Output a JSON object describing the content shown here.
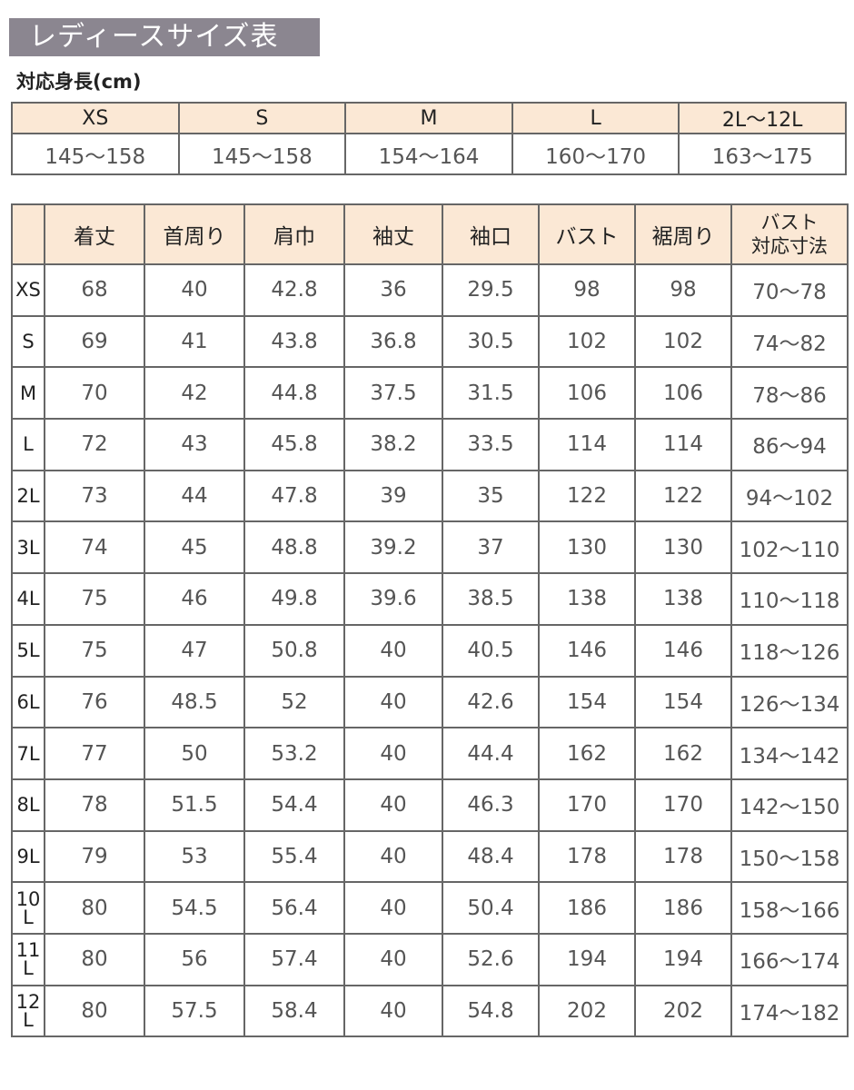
{
  "title": "レディースサイズ表",
  "height_table": {
    "label": "対応身長(cm)",
    "sizes": [
      "XS",
      "S",
      "M",
      "L",
      "2L〜12L"
    ],
    "heights": [
      "145〜158",
      "145〜158",
      "154〜164",
      "160〜170",
      "163〜175"
    ]
  },
  "size_table": {
    "headers": [
      "",
      "着丈",
      "首周り",
      "肩巾",
      "袖丈",
      "袖口",
      "バスト",
      "裾周り",
      "バスト\n対応寸法"
    ],
    "rows": [
      [
        "XS",
        "68",
        "40",
        "42.8",
        "36",
        "29.5",
        "98",
        "98",
        "70〜78"
      ],
      [
        "S",
        "69",
        "41",
        "43.8",
        "36.8",
        "30.5",
        "102",
        "102",
        "74〜82"
      ],
      [
        "M",
        "70",
        "42",
        "44.8",
        "37.5",
        "31.5",
        "106",
        "106",
        "78〜86"
      ],
      [
        "L",
        "72",
        "43",
        "45.8",
        "38.2",
        "33.5",
        "114",
        "114",
        "86〜94"
      ],
      [
        "2L",
        "73",
        "44",
        "47.8",
        "39",
        "35",
        "122",
        "122",
        "94〜102"
      ],
      [
        "3L",
        "74",
        "45",
        "48.8",
        "39.2",
        "37",
        "130",
        "130",
        "102〜110"
      ],
      [
        "4L",
        "75",
        "46",
        "49.8",
        "39.6",
        "38.5",
        "138",
        "138",
        "110〜118"
      ],
      [
        "5L",
        "75",
        "47",
        "50.8",
        "40",
        "40.5",
        "146",
        "146",
        "118〜126"
      ],
      [
        "6L",
        "76",
        "48.5",
        "52",
        "40",
        "42.6",
        "154",
        "154",
        "126〜134"
      ],
      [
        "7L",
        "77",
        "50",
        "53.2",
        "40",
        "44.4",
        "162",
        "162",
        "134〜142"
      ],
      [
        "8L",
        "78",
        "51.5",
        "54.4",
        "40",
        "46.3",
        "170",
        "170",
        "142〜150"
      ],
      [
        "9L",
        "79",
        "53",
        "55.4",
        "40",
        "48.4",
        "178",
        "178",
        "150〜158"
      ],
      [
        "10L",
        "80",
        "54.5",
        "56.4",
        "40",
        "50.4",
        "186",
        "186",
        "158〜166"
      ],
      [
        "11L",
        "80",
        "56",
        "57.4",
        "40",
        "52.6",
        "194",
        "194",
        "166〜174"
      ],
      [
        "12L",
        "80",
        "57.5",
        "58.4",
        "40",
        "54.8",
        "202",
        "202",
        "174〜182"
      ]
    ]
  },
  "colors": {
    "title_bg": "#8b8690",
    "header_bg": "#fbe8d5",
    "border": "#666666"
  }
}
